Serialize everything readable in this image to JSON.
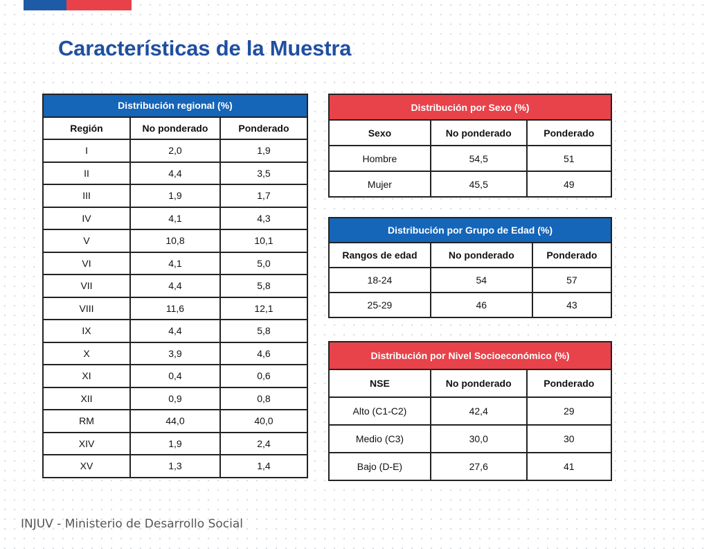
{
  "title": "Características de la Muestra",
  "footer": "INJUV - Ministerio de Desarrollo Social",
  "colors": {
    "title": "#1f4fa0",
    "header_blue": "#1565b8",
    "header_red": "#e8424a",
    "flag_blue": "#1f5aa6",
    "flag_red": "#e84149"
  },
  "regional": {
    "caption": "Distribución regional (%)",
    "headers": [
      "Región",
      "No ponderado",
      "Ponderado"
    ],
    "rows": [
      [
        "I",
        "2,0",
        "1,9"
      ],
      [
        "II",
        "4,4",
        "3,5"
      ],
      [
        "III",
        "1,9",
        "1,7"
      ],
      [
        "IV",
        "4,1",
        "4,3"
      ],
      [
        "V",
        "10,8",
        "10,1"
      ],
      [
        "VI",
        "4,1",
        "5,0"
      ],
      [
        "VII",
        "4,4",
        "5,8"
      ],
      [
        "VIII",
        "11,6",
        "12,1"
      ],
      [
        "IX",
        "4,4",
        "5,8"
      ],
      [
        "X",
        "3,9",
        "4,6"
      ],
      [
        "XI",
        "0,4",
        "0,6"
      ],
      [
        "XII",
        "0,9",
        "0,8"
      ],
      [
        "RM",
        "44,0",
        "40,0"
      ],
      [
        "XIV",
        "1,9",
        "2,4"
      ],
      [
        "XV",
        "1,3",
        "1,4"
      ]
    ]
  },
  "sexo": {
    "caption": "Distribución por Sexo (%)",
    "headers": [
      "Sexo",
      "No ponderado",
      "Ponderado"
    ],
    "rows": [
      [
        "Hombre",
        "54,5",
        "51"
      ],
      [
        "Mujer",
        "45,5",
        "49"
      ]
    ]
  },
  "edad": {
    "caption": "Distribución por Grupo de Edad (%)",
    "headers": [
      "Rangos de edad",
      "No ponderado",
      "Ponderado"
    ],
    "rows": [
      [
        "18-24",
        "54",
        "57"
      ],
      [
        "25-29",
        "46",
        "43"
      ]
    ]
  },
  "nse": {
    "caption": "Distribución por Nivel Socioeconómico (%)",
    "headers": [
      "NSE",
      "No ponderado",
      "Ponderado"
    ],
    "rows": [
      [
        "Alto (C1-C2)",
        "42,4",
        "29"
      ],
      [
        "Medio (C3)",
        "30,0",
        "30"
      ],
      [
        "Bajo (D-E)",
        "27,6",
        "41"
      ]
    ]
  }
}
